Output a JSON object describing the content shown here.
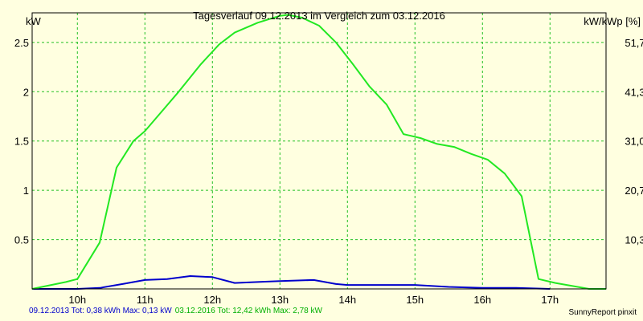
{
  "chart_data": {
    "type": "line",
    "title": "Tagesverlauf 09.12.2013 im Vergleich zum 03.12.2016",
    "ylabel_left": "kW",
    "ylabel_right": "kW/kWp [%]",
    "xlim": [
      9.33,
      17.83
    ],
    "ylim": [
      0,
      2.8
    ],
    "x_ticks": [
      10,
      11,
      12,
      13,
      14,
      15,
      16,
      17
    ],
    "x_tick_labels": [
      "10h",
      "11h",
      "12h",
      "13h",
      "14h",
      "15h",
      "16h",
      "17h"
    ],
    "y_ticks": [
      0.5,
      1,
      1.5,
      2,
      2.5
    ],
    "y_tick_labels": [
      "0.5",
      "1",
      "1.5",
      "2",
      "2.5"
    ],
    "y2_ticks": [
      0.5,
      1,
      1.5,
      2,
      2.5
    ],
    "y2_tick_labels": [
      "10,3",
      "20,7",
      "31,0",
      "41,3",
      "51,7"
    ],
    "grid": true,
    "series": [
      {
        "color": "#0000cc",
        "x": [
          9.33,
          10.0,
          10.33,
          10.67,
          11.0,
          11.33,
          11.67,
          12.0,
          12.33,
          12.67,
          13.0,
          13.5,
          13.83,
          14.0,
          14.5,
          15.0,
          15.5,
          16.0,
          16.5,
          17.0
        ],
        "y": [
          0.0,
          0.0,
          0.01,
          0.05,
          0.09,
          0.1,
          0.13,
          0.12,
          0.06,
          0.07,
          0.08,
          0.09,
          0.05,
          0.04,
          0.04,
          0.04,
          0.02,
          0.01,
          0.01,
          0.0
        ]
      },
      {
        "color": "#22e822",
        "x": [
          9.33,
          9.83,
          10.0,
          10.33,
          10.58,
          10.83,
          11.0,
          11.25,
          11.5,
          11.83,
          12.1,
          12.33,
          12.67,
          13.0,
          13.12,
          13.33,
          13.58,
          13.83,
          14.08,
          14.33,
          14.58,
          14.83,
          15.08,
          15.33,
          15.58,
          15.83,
          16.08,
          16.33,
          16.58,
          16.83,
          17.08,
          17.58,
          17.83
        ],
        "y": [
          0.0,
          0.07,
          0.1,
          0.47,
          1.23,
          1.5,
          1.6,
          1.8,
          2.0,
          2.28,
          2.48,
          2.6,
          2.7,
          2.77,
          2.78,
          2.75,
          2.67,
          2.5,
          2.28,
          2.05,
          1.87,
          1.57,
          1.53,
          1.47,
          1.44,
          1.37,
          1.31,
          1.17,
          0.94,
          0.1,
          0.06,
          0.0,
          0.0
        ]
      }
    ]
  },
  "footer": {
    "legend1": "09.12.2013 Tot: 0,38 kWh Max: 0,13 kW",
    "legend2": "03.12.2016 Tot: 12,42 kWh Max: 2,78 kW",
    "credit": "SunnyReport pinxit"
  }
}
